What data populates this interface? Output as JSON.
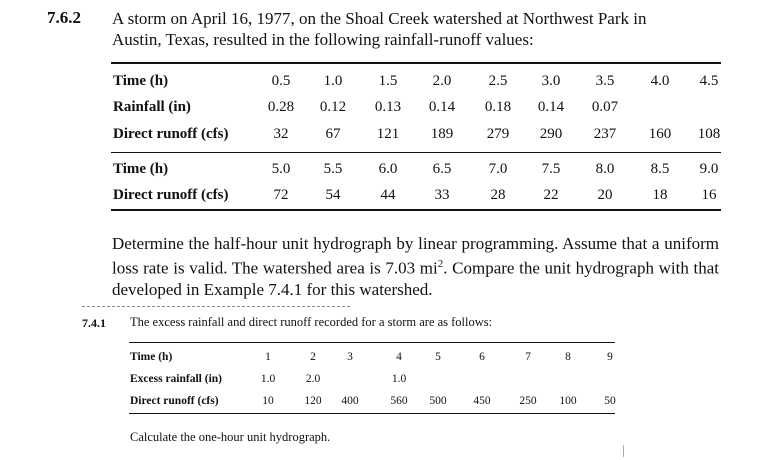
{
  "problem_762": {
    "number": "7.6.2",
    "intro_line1": "A storm on April 16, 1977, on the Shoal Creek watershed at Northwest Park in",
    "intro_line2": "Austin, Texas, resulted in the following rainfall-runoff values:",
    "table": {
      "block1": {
        "time_label": "Time (h)",
        "time": [
          "0.5",
          "1.0",
          "1.5",
          "2.0",
          "2.5",
          "3.0",
          "3.5",
          "4.0",
          "4.5"
        ],
        "rain_label": "Rainfall (in)",
        "rain": [
          "0.28",
          "0.12",
          "0.13",
          "0.14",
          "0.18",
          "0.14",
          "0.07",
          "",
          ""
        ],
        "runoff_label": "Direct runoff (cfs)",
        "runoff": [
          "32",
          "67",
          "121",
          "189",
          "279",
          "290",
          "237",
          "160",
          "108"
        ]
      },
      "block2": {
        "time_label": "Time (h)",
        "time": [
          "5.0",
          "5.5",
          "6.0",
          "6.5",
          "7.0",
          "7.5",
          "8.0",
          "8.5",
          "9.0"
        ],
        "runoff_label": "Direct runoff (cfs)",
        "runoff": [
          "72",
          "54",
          "44",
          "33",
          "28",
          "22",
          "20",
          "18",
          "16"
        ]
      }
    },
    "question_pre": "Determine the half-hour unit hydrograph by linear programming. Assume that a uniform loss rate is valid. The watershed area is 7.03 mi",
    "question_sup": "2",
    "question_post": ". Compare the unit hydrograph with that developed in Example 7.4.1 for this watershed."
  },
  "problem_741": {
    "number": "7.4.1",
    "intro": "The excess rainfall and direct runoff recorded for a storm are as follows:",
    "table": {
      "time_label": "Time (h)",
      "time": [
        "1",
        "2",
        "3",
        "4",
        "5",
        "6",
        "7",
        "8",
        "9"
      ],
      "excess_label": "Excess rainfall (in)",
      "excess": [
        "1.0",
        "2.0",
        "",
        "1.0",
        "",
        "",
        "",
        "",
        ""
      ],
      "runoff_label": "Direct runoff (cfs)",
      "runoff": [
        "10",
        "120",
        "400",
        "560",
        "500",
        "450",
        "250",
        "100",
        "50"
      ]
    },
    "question": "Calculate the one-hour unit hydrograph."
  }
}
